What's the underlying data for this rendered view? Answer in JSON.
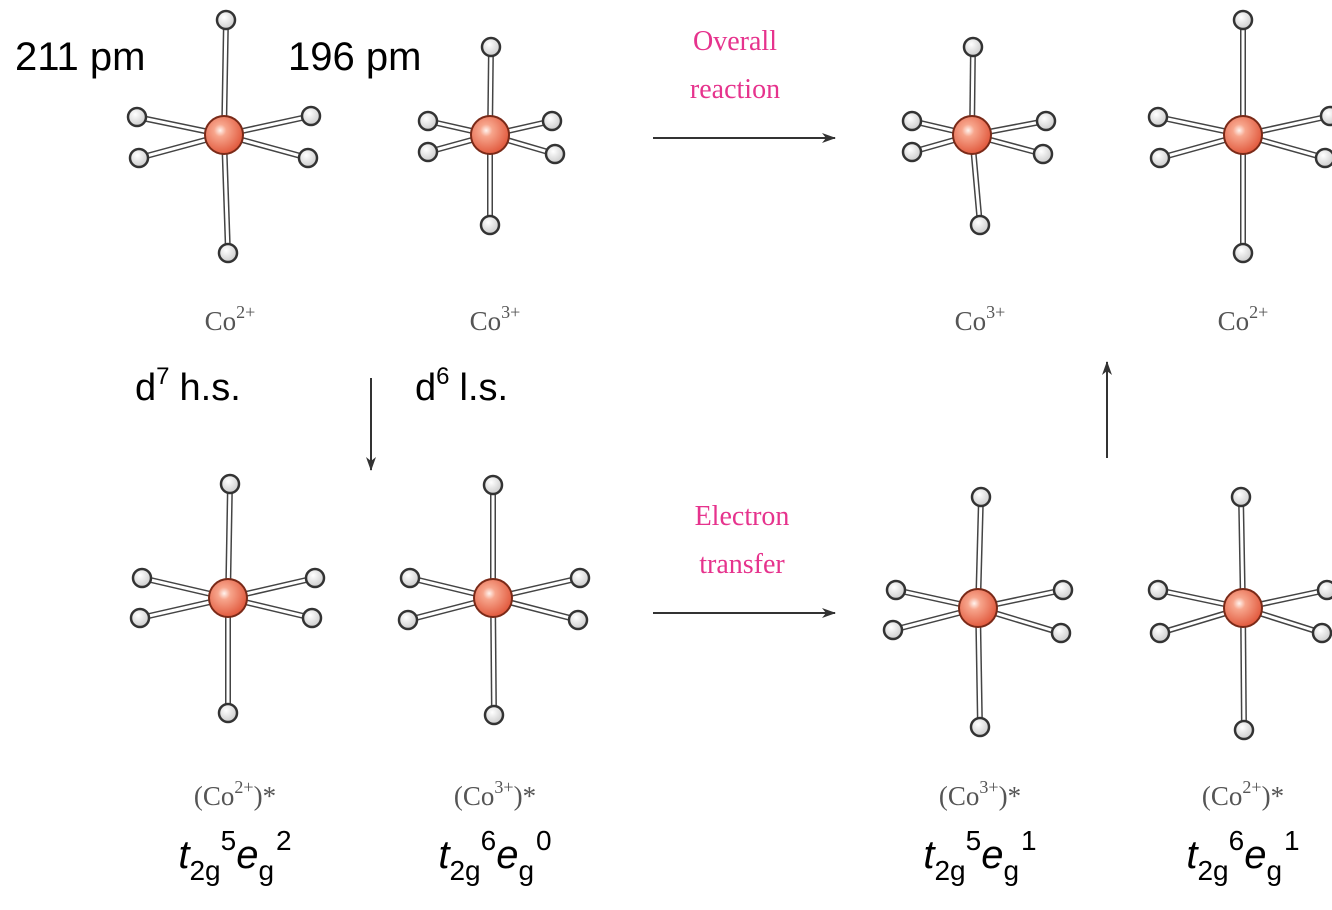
{
  "distances": [
    "211 pm",
    "196 pm"
  ],
  "arrows": [
    [
      "Overall",
      "reaction"
    ],
    [
      "Electron",
      "transfer"
    ]
  ],
  "spin_states": [
    {
      "symbol": "d",
      "electrons": "7",
      "state": "h.s."
    },
    {
      "symbol": "d",
      "electrons": "6",
      "state": "l.s."
    }
  ],
  "ground": [
    {
      "ion": "Co",
      "charge": "2+"
    },
    {
      "ion": "Co",
      "charge": "3+"
    },
    {
      "ion": "Co",
      "charge": "3+"
    },
    {
      "ion": "Co",
      "charge": "2+"
    }
  ],
  "excited": [
    {
      "open": "(Co",
      "charge": "2+",
      "close": ")*",
      "config": {
        "t": "t",
        "t_sub": "2g",
        "t_exp": "5",
        "e": "e",
        "e_sub": "g",
        "e_exp": "2"
      }
    },
    {
      "open": "(Co",
      "charge": "3+",
      "close": ")*",
      "config": {
        "t": "t",
        "t_sub": "2g",
        "t_exp": "6",
        "e": "e",
        "e_sub": "g",
        "e_exp": "0"
      }
    },
    {
      "open": "(Co",
      "charge": "3+",
      "close": ")*",
      "config": {
        "t": "t",
        "t_sub": "2g",
        "t_exp": "5",
        "e": "e",
        "e_sub": "g",
        "e_exp": "1"
      }
    },
    {
      "open": "(Co",
      "charge": "2+",
      "close": ")*",
      "config": {
        "t": "t",
        "t_sub": "2g",
        "t_exp": "6",
        "e": "e",
        "e_sub": "g",
        "e_exp": "1"
      }
    }
  ]
}
